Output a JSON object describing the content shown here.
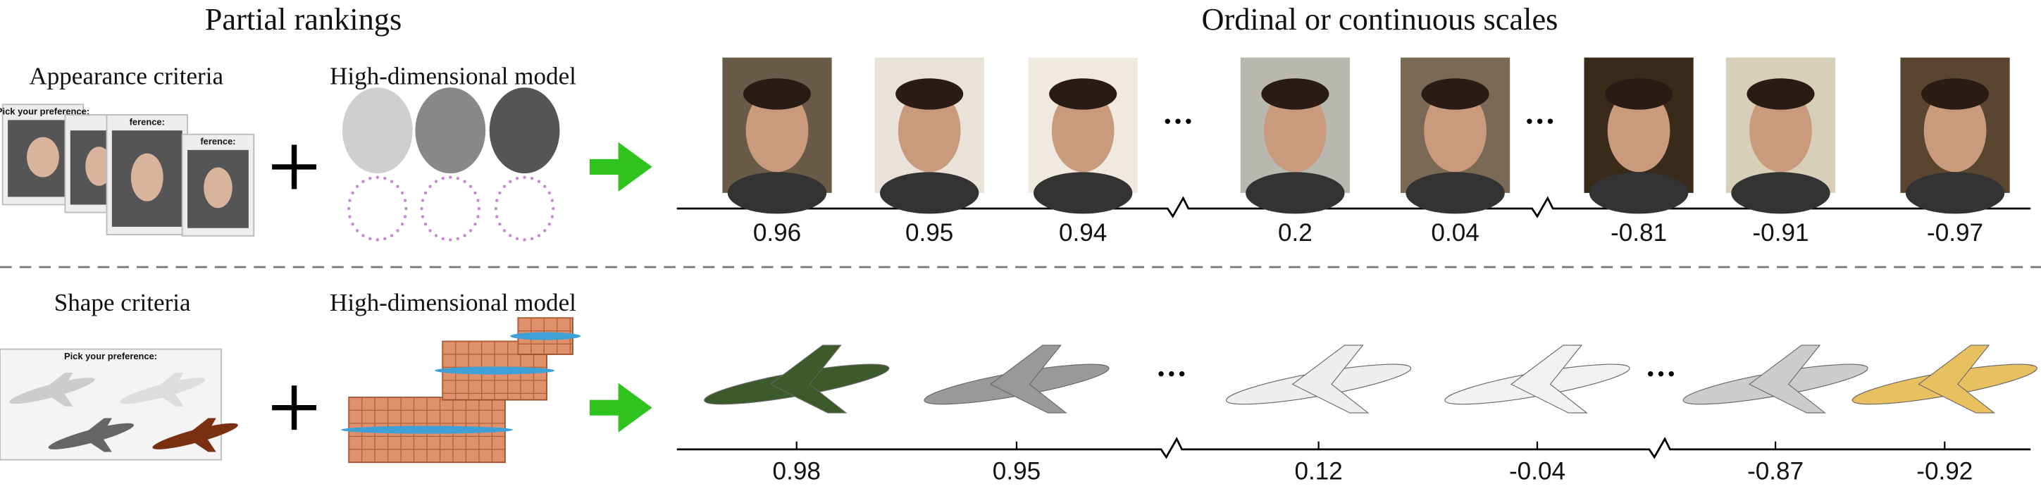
{
  "header": {
    "left_title": "Partial rankings",
    "right_title": "Ordinal or continuous scales"
  },
  "rows": [
    {
      "criteria_label": "Appearance criteria",
      "model_label": "High-dimensional model",
      "ui_texts": [
        "Pick your preference:",
        "ference:",
        "ference:"
      ],
      "scale_labels": [
        "0.96",
        "0.95",
        "0.94",
        "0.2",
        "0.04",
        "-0.81",
        "-0.91",
        "-0.97"
      ]
    },
    {
      "criteria_label": "Shape criteria",
      "model_label": "High-dimensional model",
      "ui_texts": [
        "Pick your preference:"
      ],
      "scale_labels": [
        "0.98",
        "0.95",
        "0.12",
        "-0.04",
        "-0.87",
        "-0.92"
      ]
    }
  ]
}
